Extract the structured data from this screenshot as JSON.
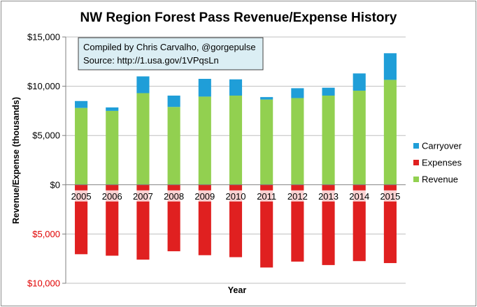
{
  "chart_data": {
    "type": "bar",
    "stacked": true,
    "title": "NW Region Forest Pass Revenue/Expense History",
    "xlabel": "Year",
    "ylabel": "Revenue/Expense (thousands)",
    "ylim": [
      -10000,
      15000
    ],
    "yticks": [
      {
        "value": 15000,
        "label": "$15,000"
      },
      {
        "value": 10000,
        "label": "$10,000"
      },
      {
        "value": 5000,
        "label": "$5,000"
      },
      {
        "value": 0,
        "label": "$0"
      },
      {
        "value": -5000,
        "label": "$5,000"
      },
      {
        "value": -10000,
        "label": "$10,000"
      }
    ],
    "grid": true,
    "legend_position": "right",
    "categories": [
      "2005",
      "2006",
      "2007",
      "2008",
      "2009",
      "2010",
      "2011",
      "2012",
      "2013",
      "2014",
      "2015"
    ],
    "series": [
      {
        "name": "Revenue",
        "color": "#92d050",
        "values": [
          7800,
          7500,
          9300,
          7900,
          8950,
          9050,
          8650,
          8800,
          9050,
          9550,
          10650
        ]
      },
      {
        "name": "Carryover",
        "color": "#1f9ed8",
        "values": [
          700,
          350,
          1700,
          1150,
          1800,
          1650,
          250,
          1000,
          800,
          1750,
          2700
        ]
      },
      {
        "name": "Expenses",
        "color": "#e02020",
        "values": [
          -7050,
          -7200,
          -7600,
          -6750,
          -7150,
          -7350,
          -8400,
          -7800,
          -8150,
          -7750,
          -7950
        ]
      }
    ],
    "legend": [
      {
        "name": "Carryover",
        "color": "#1f9ed8"
      },
      {
        "name": "Expenses",
        "color": "#e02020"
      },
      {
        "name": "Revenue",
        "color": "#92d050"
      }
    ],
    "annotation": {
      "line1": "Compiled by Chris Carvalho, @gorgepulse",
      "line2": "Source: http://1.usa.gov/1VPqsLn"
    }
  }
}
